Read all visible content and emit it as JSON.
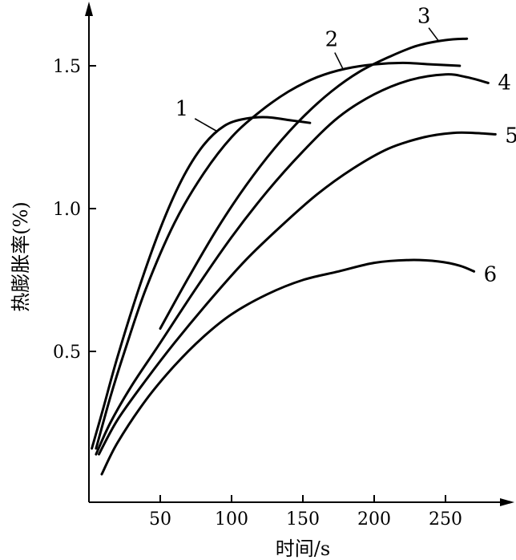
{
  "chart_data": {
    "type": "line",
    "title": "",
    "xlabel": "时间/s",
    "ylabel": "热膨胀率(%)",
    "xlim": [
      0,
      295
    ],
    "ylim": [
      0,
      1.7
    ],
    "x_ticks": [
      50,
      100,
      150,
      200,
      250
    ],
    "x_tick_labels": [
      "50",
      "100",
      "150",
      "200",
      "250"
    ],
    "y_ticks": [
      0.5,
      1.0,
      1.5
    ],
    "y_tick_labels": [
      "0.5",
      "1.0",
      "1.5"
    ],
    "grid": false,
    "legend": "none",
    "series": [
      {
        "label": "1",
        "points": [
          [
            2,
            0.16
          ],
          [
            10,
            0.3
          ],
          [
            20,
            0.48
          ],
          [
            35,
            0.72
          ],
          [
            50,
            0.93
          ],
          [
            65,
            1.1
          ],
          [
            80,
            1.22
          ],
          [
            95,
            1.29
          ],
          [
            110,
            1.315
          ],
          [
            125,
            1.32
          ],
          [
            140,
            1.31
          ],
          [
            155,
            1.3
          ]
        ]
      },
      {
        "label": "2",
        "points": [
          [
            5,
            0.16
          ],
          [
            15,
            0.34
          ],
          [
            25,
            0.5
          ],
          [
            40,
            0.72
          ],
          [
            60,
            0.95
          ],
          [
            80,
            1.12
          ],
          [
            100,
            1.25
          ],
          [
            120,
            1.34
          ],
          [
            140,
            1.41
          ],
          [
            160,
            1.46
          ],
          [
            180,
            1.49
          ],
          [
            200,
            1.505
          ],
          [
            220,
            1.51
          ],
          [
            240,
            1.505
          ],
          [
            260,
            1.5
          ]
        ]
      },
      {
        "label": "3",
        "points": [
          [
            50,
            0.58
          ],
          [
            70,
            0.76
          ],
          [
            90,
            0.93
          ],
          [
            110,
            1.08
          ],
          [
            130,
            1.21
          ],
          [
            150,
            1.32
          ],
          [
            170,
            1.41
          ],
          [
            190,
            1.48
          ],
          [
            210,
            1.53
          ],
          [
            230,
            1.57
          ],
          [
            250,
            1.59
          ],
          [
            265,
            1.595
          ]
        ]
      },
      {
        "label": "4",
        "points": [
          [
            5,
            0.14
          ],
          [
            15,
            0.25
          ],
          [
            30,
            0.38
          ],
          [
            50,
            0.53
          ],
          [
            75,
            0.72
          ],
          [
            100,
            0.9
          ],
          [
            125,
            1.06
          ],
          [
            150,
            1.2
          ],
          [
            175,
            1.32
          ],
          [
            200,
            1.4
          ],
          [
            225,
            1.45
          ],
          [
            250,
            1.47
          ],
          [
            265,
            1.46
          ],
          [
            280,
            1.44
          ]
        ]
      },
      {
        "label": "5",
        "points": [
          [
            7,
            0.14
          ],
          [
            20,
            0.26
          ],
          [
            40,
            0.4
          ],
          [
            60,
            0.53
          ],
          [
            85,
            0.68
          ],
          [
            110,
            0.82
          ],
          [
            135,
            0.94
          ],
          [
            160,
            1.05
          ],
          [
            185,
            1.14
          ],
          [
            210,
            1.21
          ],
          [
            235,
            1.25
          ],
          [
            255,
            1.265
          ],
          [
            270,
            1.265
          ],
          [
            285,
            1.26
          ]
        ]
      },
      {
        "label": "6",
        "points": [
          [
            9,
            0.07
          ],
          [
            20,
            0.18
          ],
          [
            40,
            0.33
          ],
          [
            60,
            0.45
          ],
          [
            80,
            0.55
          ],
          [
            100,
            0.63
          ],
          [
            125,
            0.7
          ],
          [
            150,
            0.75
          ],
          [
            175,
            0.78
          ],
          [
            200,
            0.81
          ],
          [
            225,
            0.82
          ],
          [
            245,
            0.815
          ],
          [
            260,
            0.8
          ],
          [
            270,
            0.78
          ]
        ]
      }
    ]
  }
}
